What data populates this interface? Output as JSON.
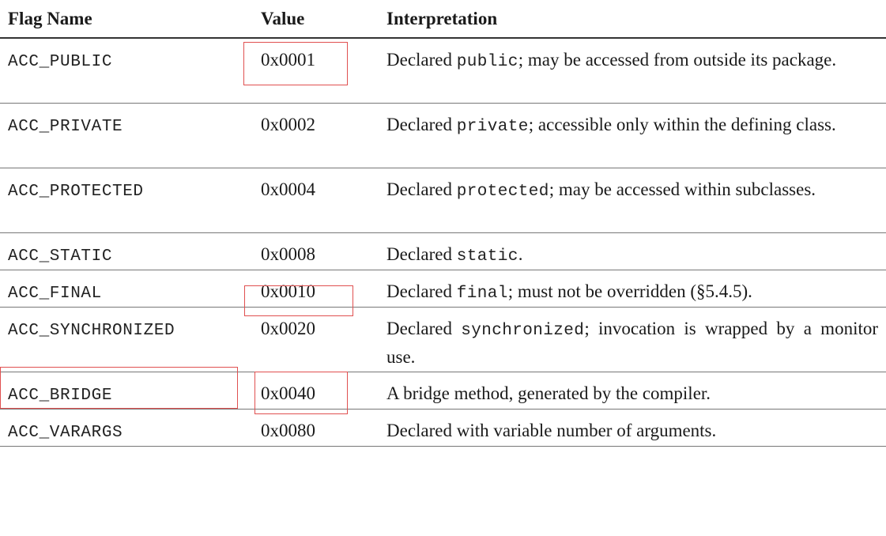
{
  "table": {
    "headers": {
      "flag_name": "Flag Name",
      "value": "Value",
      "interpretation": "Interpretation"
    },
    "rows": [
      {
        "flag": "ACC_PUBLIC",
        "value": "0x0001",
        "pre": "Declared ",
        "code": "public",
        "post": "; may be accessed from outside its package.",
        "highlight_flag": false,
        "highlight_value": true
      },
      {
        "flag": "ACC_PRIVATE",
        "value": "0x0002",
        "pre": "Declared ",
        "code": "private",
        "post": "; accessible only within the defining class.",
        "highlight_flag": false,
        "highlight_value": false
      },
      {
        "flag": "ACC_PROTECTED",
        "value": "0x0004",
        "pre": "Declared ",
        "code": "protected",
        "post": "; may be accessed within subclasses.",
        "highlight_flag": false,
        "highlight_value": false
      },
      {
        "flag": "ACC_STATIC",
        "value": "0x0008",
        "pre": "Declared ",
        "code": "static",
        "post": ".",
        "highlight_flag": false,
        "highlight_value": true
      },
      {
        "flag": "ACC_FINAL",
        "value": "0x0010",
        "pre": "Declared ",
        "code": "final",
        "post": "; must not be overridden (§5.4.5).",
        "highlight_flag": false,
        "highlight_value": false
      },
      {
        "flag": "ACC_SYNCHRONIZED",
        "value": "0x0020",
        "pre": "Declared ",
        "code": "synchronized",
        "post": "; invocation is wrapped by a monitor use.",
        "highlight_flag": true,
        "highlight_value": true
      },
      {
        "flag": "ACC_BRIDGE",
        "value": "0x0040",
        "pre": "",
        "code": "",
        "post": "A bridge method, generated by the compiler.",
        "highlight_flag": false,
        "highlight_value": false
      },
      {
        "flag": "ACC_VARARGS",
        "value": "0x0080",
        "pre": "",
        "code": "",
        "post": "Declared with variable number of arguments.",
        "highlight_flag": false,
        "highlight_value": false
      }
    ]
  },
  "colors": {
    "highlight_box": "#e05050",
    "text": "#1a1a1a"
  }
}
